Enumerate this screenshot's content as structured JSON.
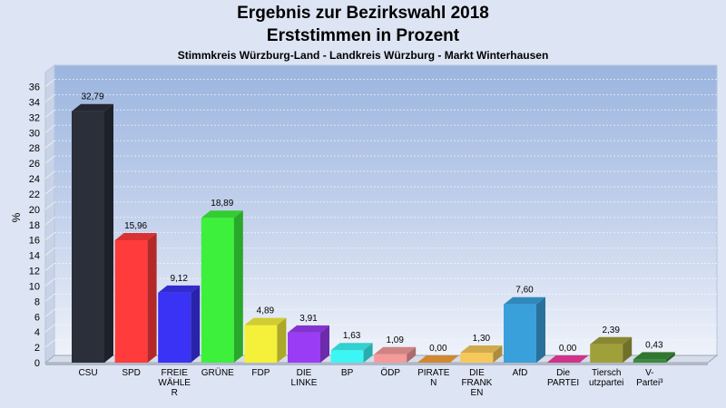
{
  "header": {
    "title": "Ergebnis zur Bezirkswahl 2018",
    "subtitle": "Erststimmen in Prozent",
    "region": "Stimmkreis Würzburg-Land - Landkreis Würzburg - Markt Winterhausen"
  },
  "chart_data": {
    "type": "bar",
    "title": "Ergebnis zur Bezirkswahl 2018",
    "subtitle": "Erststimmen in Prozent",
    "ylabel": "%",
    "xlabel": "",
    "ylim": [
      0,
      36
    ],
    "yticks": [
      0,
      2,
      4,
      6,
      8,
      10,
      12,
      14,
      16,
      18,
      20,
      22,
      24,
      26,
      28,
      30,
      32,
      34,
      36
    ],
    "grid": true,
    "categories": [
      "CSU",
      "SPD",
      "FREIE WÄHLER",
      "GRÜNE",
      "FDP",
      "DIE LINKE",
      "BP",
      "ÖDP",
      "PIRATEN",
      "DIE FRANKEN",
      "AfD",
      "Die PARTEI",
      "Tierschutzpartei",
      "V-Partei³"
    ],
    "category_lines": [
      [
        "CSU"
      ],
      [
        "SPD"
      ],
      [
        "FREIE",
        "WÄHLE",
        "R"
      ],
      [
        "GRÜNE"
      ],
      [
        "FDP"
      ],
      [
        "DIE",
        "LINKE"
      ],
      [
        "BP"
      ],
      [
        "ÖDP"
      ],
      [
        "PIRATE",
        "N"
      ],
      [
        "DIE",
        "FRANK",
        "EN"
      ],
      [
        "AfD"
      ],
      [
        "Die",
        "PARTEI"
      ],
      [
        "Tiersch",
        "utzpartei"
      ],
      [
        "V-",
        "Partei³"
      ]
    ],
    "values": [
      32.79,
      15.96,
      9.12,
      18.89,
      4.89,
      3.91,
      1.63,
      1.09,
      0.0,
      1.3,
      7.6,
      0.0,
      2.39,
      0.43
    ],
    "value_labels": [
      "32,79",
      "15,96",
      "9,12",
      "18,89",
      "4,89",
      "3,91",
      "1,63",
      "1,09",
      "0,00",
      "1,30",
      "7,60",
      "0,00",
      "2,39",
      "0,43"
    ],
    "colors": [
      "#2b2f3a",
      "#ff3b3b",
      "#3a32f5",
      "#3cf03c",
      "#f5f03a",
      "#9a3cf5",
      "#3cf5f5",
      "#f59a9a",
      "#f5a03a",
      "#f5c85a",
      "#3aa0dc",
      "#f53ca0",
      "#a0a03a",
      "#3a8c3a"
    ]
  }
}
